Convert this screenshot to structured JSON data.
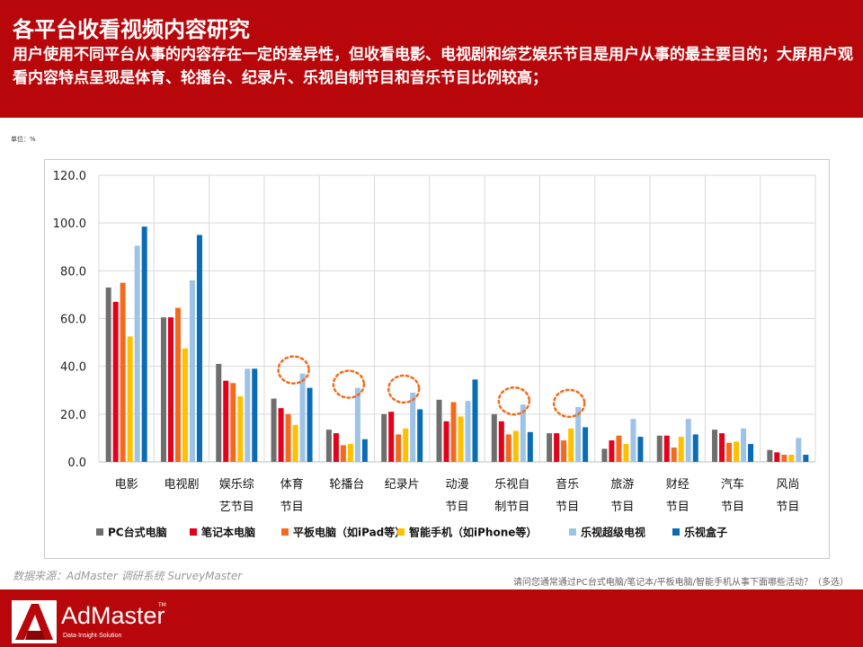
{
  "header": {
    "title": "各平台收看视频内容研究",
    "subtitle": "用户使用不同平台从事的内容存在一定的差异性，但收看电影、电视剧和综艺娱乐节目是用户从事的最主要目的；大屏用户观看内容特点呈现是体育、轮播台、纪录片、乐视自制节目和音乐节目比例较高；"
  },
  "unit_label": "单位：%",
  "source": "数据来源：AdMaster 调研系统 SurveyMaster",
  "question": "请问您通常通过PC台式电脑/笔记本/平板电脑/智能手机从事下面哪些活动？（多选）",
  "logo": {
    "text": "AdMaster",
    "tagline": "Data·Insight·Solution",
    "tm": "TM"
  },
  "chart_data": {
    "type": "bar",
    "categories": [
      [
        "电影"
      ],
      [
        "电视剧"
      ],
      [
        "娱乐综",
        "艺节目"
      ],
      [
        "体育",
        "节目"
      ],
      [
        "轮播台"
      ],
      [
        "纪录片"
      ],
      [
        "动漫",
        "节目"
      ],
      [
        "乐视自",
        "制节目"
      ],
      [
        "音乐",
        "节目"
      ],
      [
        "旅游",
        "节目"
      ],
      [
        "财经",
        "节目"
      ],
      [
        "汽车",
        "节目"
      ],
      [
        "风尚",
        "节目"
      ]
    ],
    "series": [
      {
        "name": "PC台式电脑",
        "color": "#6e6e6e",
        "values": [
          73,
          60.5,
          41,
          26.5,
          13.5,
          20,
          26,
          20,
          12,
          5.5,
          11,
          13.5,
          5
        ]
      },
      {
        "name": "笔记本电脑",
        "color": "#e2001a",
        "values": [
          67,
          60.5,
          34,
          22.5,
          12,
          21,
          17,
          17,
          12,
          9,
          11,
          12,
          4
        ]
      },
      {
        "name": "平板电脑（如iPad等）",
        "color": "#f26b1d",
        "values": [
          75,
          64.5,
          33,
          20,
          7,
          11.5,
          25,
          11.5,
          9,
          11,
          6,
          8,
          3
        ]
      },
      {
        "name": "智能手机（如iPhone等）",
        "color": "#ffc000",
        "values": [
          52.5,
          47.5,
          27.5,
          15.5,
          7.5,
          14,
          19,
          13,
          14,
          7.5,
          10.5,
          8.5,
          3
        ]
      },
      {
        "name": "乐视超级电视",
        "color": "#9dc3e6",
        "values": [
          90.5,
          76,
          39,
          37,
          31,
          29,
          25.5,
          24,
          23,
          18,
          18,
          14,
          10
        ]
      },
      {
        "name": "乐视盒子",
        "color": "#0a6cb5",
        "values": [
          98.5,
          95,
          39,
          31,
          9.5,
          22,
          34.5,
          12.5,
          14.5,
          10.5,
          11.5,
          7.5,
          3
        ]
      }
    ],
    "ylim": [
      0,
      120
    ],
    "yticks": [
      "120.0",
      "100.0",
      "80.0",
      "60.0",
      "40.0",
      "20.0",
      "0.0"
    ],
    "highlighted_categories": [
      3,
      4,
      5,
      7,
      8
    ],
    "highlight_color": "#f26b1d",
    "grid": true,
    "legend_position": "bottom"
  }
}
